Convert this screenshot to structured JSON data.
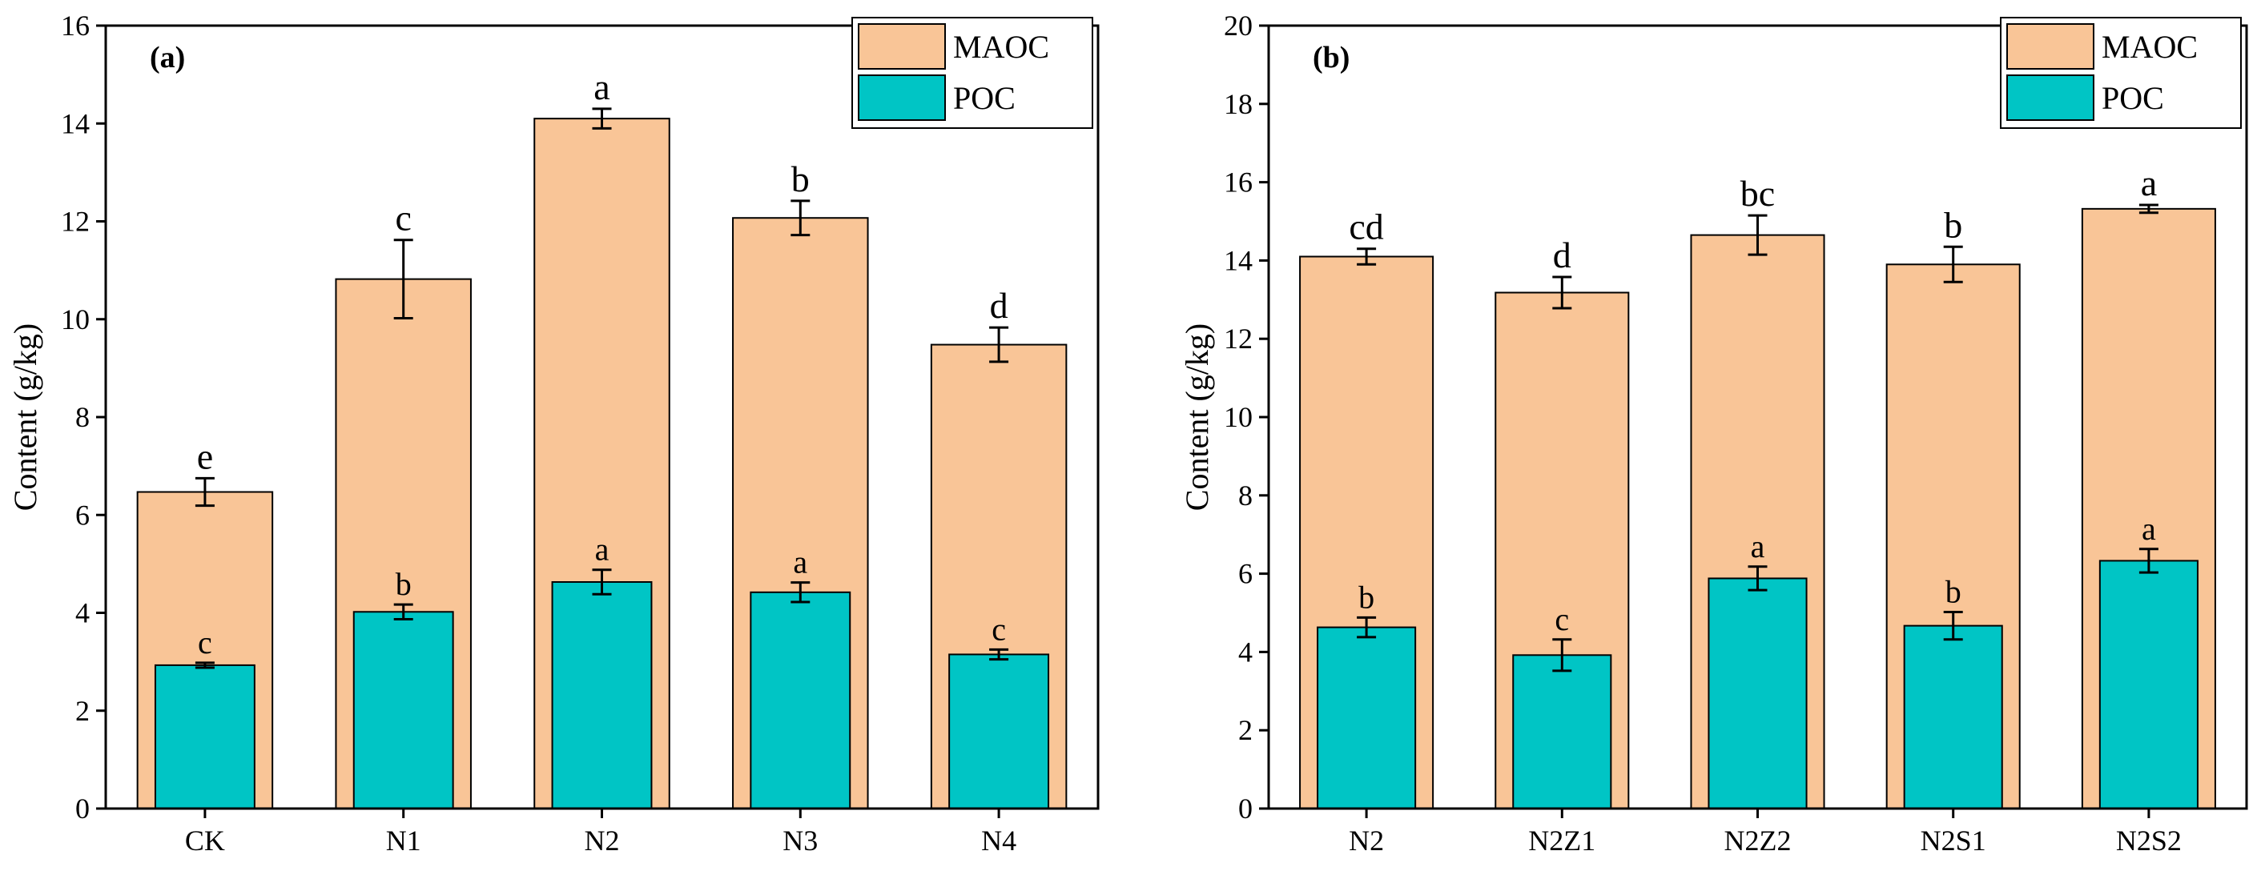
{
  "chart_data": [
    {
      "type": "bar",
      "title": "(a)",
      "ylabel": "Content (g/kg)",
      "categories": [
        "CK",
        "N1",
        "N2",
        "N3",
        "N4"
      ],
      "series": [
        {
          "name": "MAOC",
          "color": "#f9c597",
          "values": [
            6.47,
            10.82,
            14.1,
            12.07,
            9.48
          ],
          "errors": [
            0.28,
            0.8,
            0.2,
            0.35,
            0.35
          ],
          "annotations": [
            "e",
            "c",
            "a",
            "b",
            "d"
          ]
        },
        {
          "name": "POC",
          "color": "#00c5c5",
          "values": [
            2.93,
            4.02,
            4.63,
            4.42,
            3.15
          ],
          "errors": [
            0.05,
            0.15,
            0.25,
            0.2,
            0.1
          ],
          "annotations": [
            "c",
            "b",
            "a",
            "a",
            "c"
          ]
        }
      ],
      "ylim": [
        0,
        16
      ],
      "yticks": [
        0,
        2,
        4,
        6,
        8,
        10,
        12,
        14,
        16
      ],
      "legend": "upper right"
    },
    {
      "type": "bar",
      "title": "(b)",
      "ylabel": "Content (g/kg)",
      "categories": [
        "N2",
        "N2Z1",
        "N2Z2",
        "N2S1",
        "N2S2"
      ],
      "series": [
        {
          "name": "MAOC",
          "color": "#f9c597",
          "values": [
            14.1,
            13.18,
            14.65,
            13.9,
            15.32
          ],
          "errors": [
            0.2,
            0.4,
            0.5,
            0.45,
            0.1
          ],
          "annotations": [
            "cd",
            "d",
            "bc",
            "b",
            "a"
          ]
        },
        {
          "name": "POC",
          "color": "#00c5c5",
          "values": [
            4.63,
            3.92,
            5.88,
            4.67,
            6.33
          ],
          "errors": [
            0.25,
            0.4,
            0.3,
            0.35,
            0.3
          ],
          "annotations": [
            "b",
            "c",
            "a",
            "b",
            "a"
          ]
        }
      ],
      "ylim": [
        0,
        20
      ],
      "yticks": [
        0,
        2,
        4,
        6,
        8,
        10,
        12,
        14,
        16,
        18,
        20
      ],
      "legend": "upper right"
    }
  ]
}
